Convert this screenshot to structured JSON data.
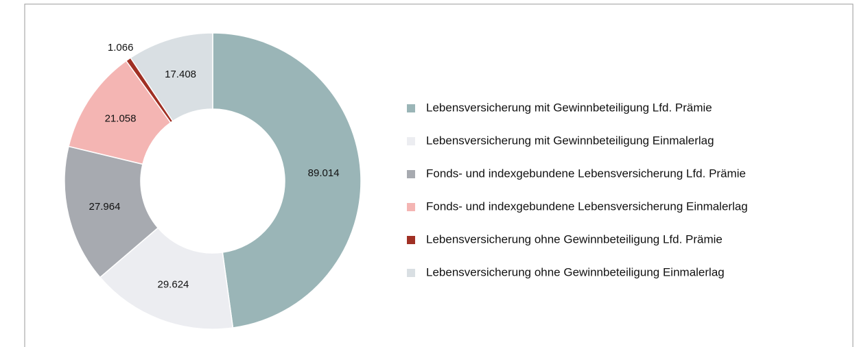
{
  "chart_data": {
    "type": "donut",
    "categories": [
      "Lebensversicherung mit Gewinnbeteiligung Lfd. Prämie",
      "Lebensversicherung mit Gewinnbeteiligung Einmalerlag",
      "Fonds- und indexgebundene Lebensversicherung Lfd. Prämie",
      "Fonds- und indexgebundene Lebensversicherung Einmalerlag",
      "Lebensversicherung ohne Gewinnbeteiligung Lfd. Prämie",
      "Lebensversicherung ohne Gewinnbeteiligung Einmalerlag"
    ],
    "values": [
      89.014,
      29.624,
      27.964,
      21.058,
      1.066,
      17.408
    ],
    "colors": [
      "#9ab5b7",
      "#ecedf1",
      "#a7aab0",
      "#f4b5b3",
      "#a03024",
      "#d9dfe3"
    ],
    "legend": "right"
  }
}
